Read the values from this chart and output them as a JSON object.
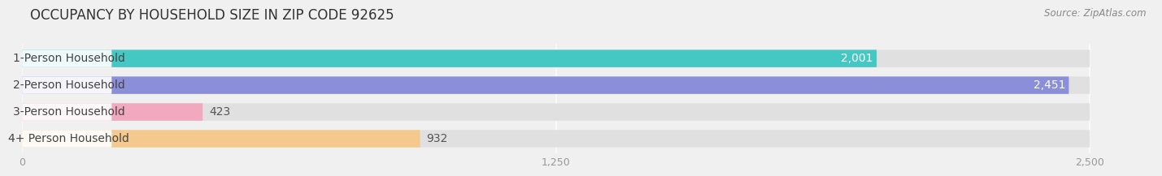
{
  "title": "OCCUPANCY BY HOUSEHOLD SIZE IN ZIP CODE 92625",
  "source": "Source: ZipAtlas.com",
  "categories": [
    "1-Person Household",
    "2-Person Household",
    "3-Person Household",
    "4+ Person Household"
  ],
  "values": [
    2001,
    2451,
    423,
    932
  ],
  "bar_colors": [
    "#45c8c4",
    "#8b8fda",
    "#f2a8bf",
    "#f5c98e"
  ],
  "xlim_max": 2500,
  "xticks": [
    0,
    1250,
    2500
  ],
  "title_fontsize": 12,
  "source_fontsize": 8.5,
  "bar_label_fontsize": 10,
  "category_fontsize": 10,
  "background_color": "#f0f0f0",
  "bar_bg_color": "#e0e0e0",
  "value_inside_threshold": 1500
}
